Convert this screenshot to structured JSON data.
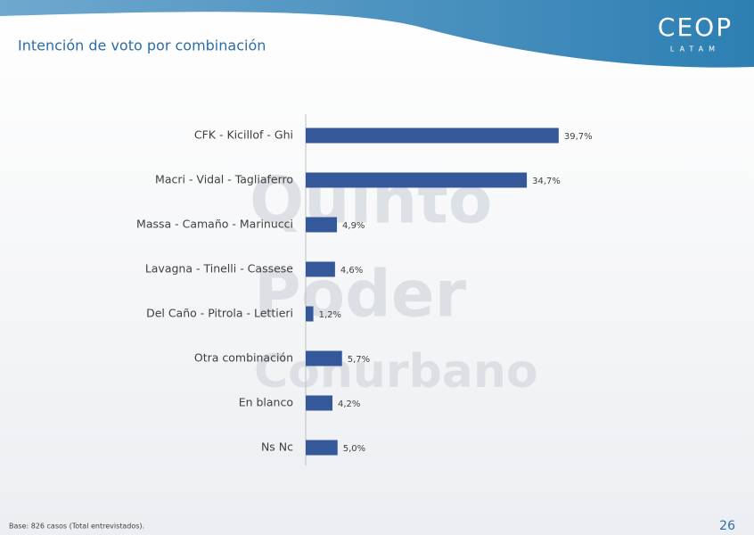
{
  "logo": {
    "name": "CEOP",
    "sub": "LATAM"
  },
  "watermark": [
    "Quinto",
    "Poder",
    "Conurbano"
  ],
  "chart_data": {
    "type": "bar",
    "orientation": "horizontal",
    "title": "Intención de voto por combinación",
    "categories": [
      "CFK - Kicillof - Ghi",
      "Macri - Vidal - Tagliaferro",
      "Massa - Camaño - Marinucci",
      "Lavagna - Tinelli - Cassese",
      "Del Caño - Pitrola - Lettieri",
      "Otra combinación",
      "En blanco",
      "Ns Nc"
    ],
    "values": [
      39.7,
      34.7,
      4.9,
      4.6,
      1.2,
      5.7,
      4.2,
      5.0
    ],
    "value_labels": [
      "39,7%",
      "34,7%",
      "4,9%",
      "4,6%",
      "1,2%",
      "5,7%",
      "4,2%",
      "5,0%"
    ],
    "color": "#34589a"
  },
  "footer": {
    "note": "Base: 826 casos (Total entrevistados).",
    "page": "26"
  }
}
